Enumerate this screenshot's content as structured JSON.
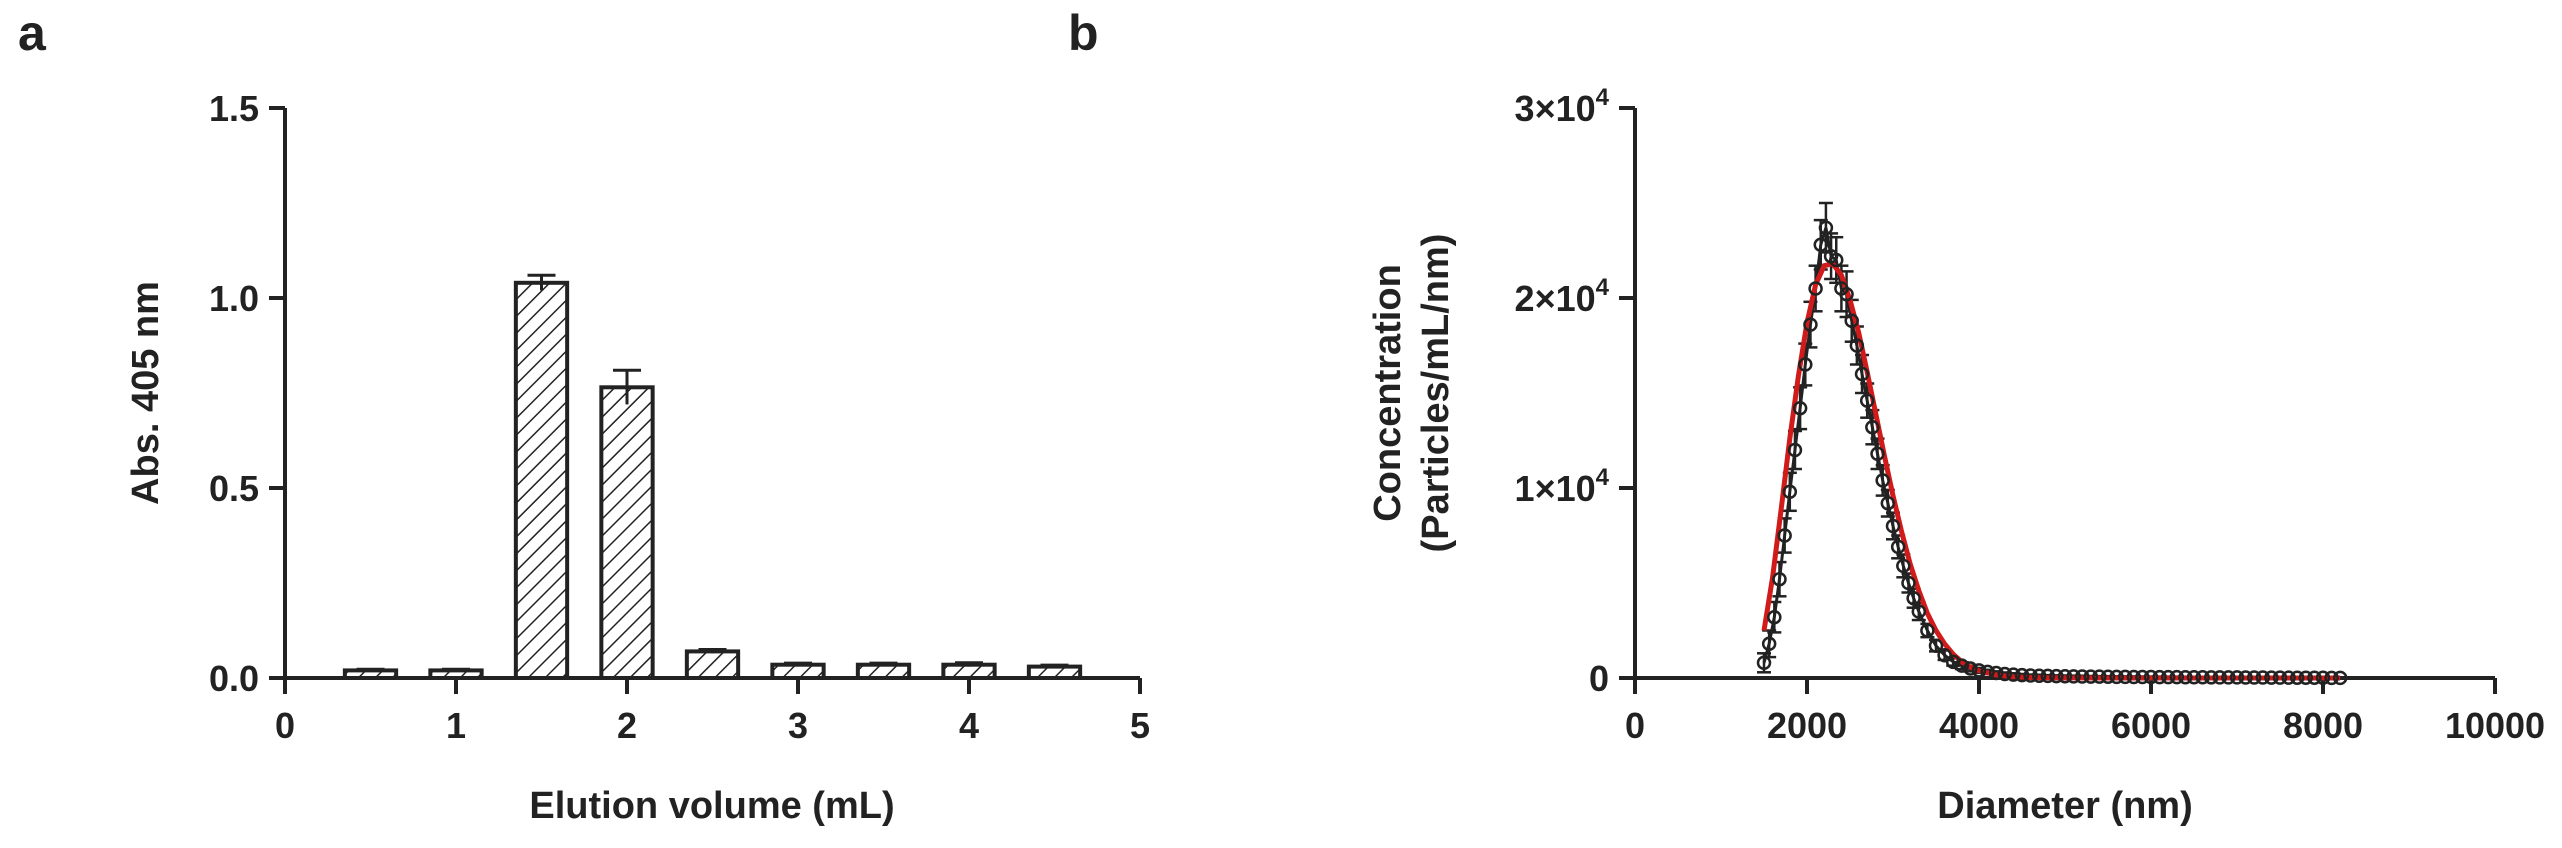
{
  "panels": [
    {
      "letter": "a",
      "chart_data": {
        "type": "bar",
        "x": [
          0.5,
          1.0,
          1.5,
          2.0,
          2.5,
          3.0,
          3.5,
          4.0,
          4.5
        ],
        "values": [
          0.02,
          0.02,
          1.04,
          0.765,
          0.07,
          0.035,
          0.035,
          0.035,
          0.03
        ],
        "errors": [
          0.003,
          0.003,
          0.02,
          0.045,
          0.005,
          0.004,
          0.004,
          0.005,
          0.004
        ],
        "bar_width": 0.3,
        "xlabel": "Elution volume (mL)",
        "ylabel": "Abs. 405 nm",
        "xlim": [
          0,
          5
        ],
        "ylim": [
          0,
          1.5
        ],
        "xticks": [
          "0",
          "1",
          "2",
          "3",
          "4",
          "5"
        ],
        "xtick_values": [
          0,
          1,
          2,
          3,
          4,
          5
        ],
        "yticks": [
          "0.0",
          "0.5",
          "1.0",
          "1.5"
        ],
        "ytick_values": [
          0,
          0.5,
          1.0,
          1.5
        ],
        "fill": "diagonal hatch",
        "grid": false
      }
    },
    {
      "letter": "b",
      "chart_data": {
        "type": "scatter",
        "x": [
          1500,
          1560,
          1620,
          1680,
          1740,
          1800,
          1860,
          1920,
          1980,
          2040,
          2100,
          2160,
          2220,
          2280,
          2340,
          2400,
          2460,
          2520,
          2580,
          2640,
          2700,
          2760,
          2820,
          2880,
          2940,
          3000,
          3060,
          3120,
          3180,
          3240,
          3300,
          3400,
          3500,
          3600,
          3700,
          3800,
          3900,
          4000,
          4100,
          4200,
          4300,
          4400,
          4500,
          4600,
          4700,
          4800,
          4900,
          5000,
          5100,
          5200,
          5300,
          5400,
          5500,
          5600,
          5700,
          5800,
          5900,
          6000,
          6100,
          6200,
          6300,
          6400,
          6500,
          6600,
          6700,
          6800,
          6900,
          7000,
          7100,
          7200,
          7300,
          7400,
          7500,
          7600,
          7700,
          7800,
          7900,
          8000,
          8100,
          8200
        ],
        "values": [
          800,
          1800,
          3200,
          5200,
          7500,
          9800,
          12000,
          14200,
          16500,
          18600,
          20500,
          22800,
          23700,
          22200,
          22000,
          20500,
          20200,
          18800,
          17500,
          16000,
          14600,
          13200,
          11800,
          10400,
          9200,
          8000,
          6900,
          5900,
          5000,
          4200,
          3500,
          2500,
          1700,
          1200,
          850,
          650,
          500,
          400,
          320,
          260,
          210,
          180,
          150,
          130,
          120,
          110,
          100,
          90,
          85,
          80,
          75,
          70,
          65,
          60,
          58,
          55,
          52,
          50,
          48,
          46,
          44,
          42,
          40,
          38,
          36,
          34,
          32,
          30,
          28,
          26,
          24,
          22,
          20,
          18,
          16,
          14,
          12,
          10,
          8,
          6
        ],
        "errors": [
          500,
          700,
          800,
          900,
          900,
          1000,
          1000,
          1100,
          1100,
          1200,
          1200,
          1300,
          1300,
          1200,
          1200,
          1200,
          1200,
          1100,
          1000,
          1000,
          900,
          900,
          800,
          800,
          700,
          700,
          600,
          600,
          500,
          500,
          450,
          350,
          300,
          250,
          200,
          180,
          150,
          130,
          110,
          90,
          80,
          70,
          60,
          50,
          50,
          40,
          40,
          40,
          40,
          40,
          30,
          30,
          30,
          30,
          30,
          30,
          30,
          30,
          30,
          30,
          30,
          30,
          20,
          20,
          20,
          20,
          20,
          20,
          20,
          20,
          20,
          20,
          20,
          20,
          20,
          20,
          20,
          20,
          20,
          20
        ],
        "fit_curve": {
          "x": [
            1500,
            1600,
            1700,
            1800,
            1900,
            2000,
            2100,
            2200,
            2300,
            2400,
            2500,
            2600,
            2700,
            2800,
            2900,
            3000,
            3100,
            3200,
            3300,
            3400,
            3500,
            3600,
            3700,
            3800,
            3900,
            4000,
            4200,
            4400,
            4600,
            4800,
            5000,
            5500,
            6000,
            6500,
            7000,
            7500,
            8000,
            8200
          ],
          "values": [
            2500,
            5300,
            8900,
            12600,
            15900,
            18700,
            20700,
            21700,
            21800,
            21200,
            19900,
            18200,
            16100,
            13900,
            11700,
            9600,
            7700,
            6000,
            4600,
            3400,
            2500,
            1800,
            1250,
            850,
            570,
            380,
            160,
            60,
            25,
            10,
            4,
            1,
            0,
            0,
            0,
            0,
            0,
            0
          ],
          "color": "#d11a1a"
        },
        "xlabel": "Diameter (nm)",
        "ylabel_line1": "Concentration",
        "ylabel_line2": "(Particles/mL/nm)",
        "xlim": [
          0,
          10000
        ],
        "ylim": [
          0,
          30000
        ],
        "xticks": [
          "0",
          "2000",
          "4000",
          "6000",
          "8000",
          "10000"
        ],
        "xtick_values": [
          0,
          2000,
          4000,
          6000,
          8000,
          10000
        ],
        "ytick_values": [
          0,
          10000,
          20000,
          30000
        ],
        "ytick_mantissa": [
          "0",
          "1×10",
          "2×10",
          "3×10"
        ],
        "ytick_exponent": [
          "",
          "4",
          "4",
          "4"
        ],
        "marker": "open circle",
        "grid": false
      }
    }
  ]
}
